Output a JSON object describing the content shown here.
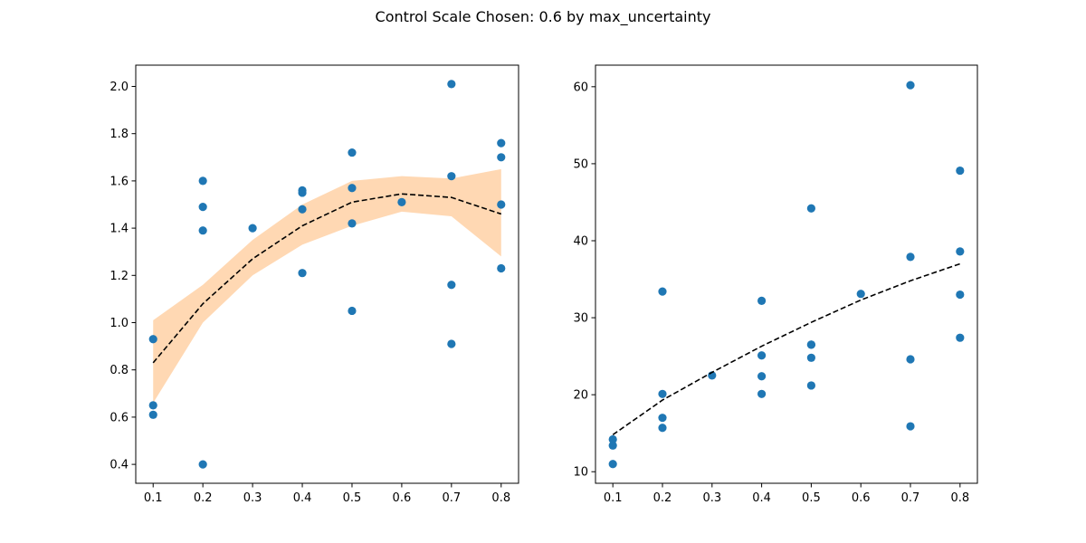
{
  "figure": {
    "suptitle": "Control Scale Chosen: 0.6 by max_uncertainty"
  },
  "colors": {
    "points": "#1f77b4",
    "band": "#ffd8b3",
    "fit_line": "#000000",
    "axes": "#000000"
  },
  "chart_data": [
    {
      "type": "scatter",
      "title": "",
      "xlabel": "",
      "ylabel": "",
      "xlim": [
        0.065,
        0.835
      ],
      "ylim": [
        0.32,
        2.09
      ],
      "x_ticks": [
        0.1,
        0.2,
        0.3,
        0.4,
        0.5,
        0.6,
        0.7,
        0.8
      ],
      "x_tick_labels": [
        "0.1",
        "0.2",
        "0.3",
        "0.4",
        "0.5",
        "0.6",
        "0.7",
        "0.8"
      ],
      "y_ticks": [
        0.4,
        0.6,
        0.8,
        1.0,
        1.2,
        1.4,
        1.6,
        1.8,
        2.0
      ],
      "y_tick_labels": [
        "0.4",
        "0.6",
        "0.8",
        "1.0",
        "1.2",
        "1.4",
        "1.6",
        "1.8",
        "2.0"
      ],
      "grid": false,
      "points": {
        "x": [
          0.1,
          0.1,
          0.1,
          0.2,
          0.2,
          0.2,
          0.2,
          0.3,
          0.4,
          0.4,
          0.4,
          0.4,
          0.5,
          0.5,
          0.5,
          0.5,
          0.6,
          0.7,
          0.7,
          0.7,
          0.7,
          0.8,
          0.8,
          0.8,
          0.8
        ],
        "y": [
          0.93,
          0.65,
          0.61,
          1.6,
          1.49,
          1.39,
          0.4,
          1.4,
          1.56,
          1.55,
          1.48,
          1.21,
          1.72,
          1.57,
          1.42,
          1.05,
          1.51,
          2.01,
          1.62,
          1.16,
          0.91,
          1.76,
          1.7,
          1.5,
          1.23
        ]
      },
      "fit_line": {
        "style": "dashed",
        "x": [
          0.1,
          0.2,
          0.3,
          0.4,
          0.5,
          0.6,
          0.7,
          0.8
        ],
        "y": [
          0.83,
          1.08,
          1.27,
          1.41,
          1.51,
          1.545,
          1.53,
          1.46
        ]
      },
      "band": {
        "x": [
          0.1,
          0.2,
          0.3,
          0.4,
          0.5,
          0.6,
          0.7,
          0.8
        ],
        "lower": [
          0.66,
          1.0,
          1.2,
          1.33,
          1.41,
          1.47,
          1.45,
          1.28
        ],
        "upper": [
          1.01,
          1.16,
          1.35,
          1.5,
          1.6,
          1.62,
          1.61,
          1.65
        ]
      }
    },
    {
      "type": "scatter",
      "title": "",
      "xlabel": "",
      "ylabel": "",
      "xlim": [
        0.065,
        0.835
      ],
      "ylim": [
        8.5,
        62.8
      ],
      "x_ticks": [
        0.1,
        0.2,
        0.3,
        0.4,
        0.5,
        0.6,
        0.7,
        0.8
      ],
      "x_tick_labels": [
        "0.1",
        "0.2",
        "0.3",
        "0.4",
        "0.5",
        "0.6",
        "0.7",
        "0.8"
      ],
      "y_ticks": [
        10,
        20,
        30,
        40,
        50,
        60
      ],
      "y_tick_labels": [
        "10",
        "20",
        "30",
        "40",
        "50",
        "60"
      ],
      "grid": false,
      "points": {
        "x": [
          0.1,
          0.1,
          0.1,
          0.2,
          0.2,
          0.2,
          0.2,
          0.3,
          0.4,
          0.4,
          0.4,
          0.4,
          0.5,
          0.5,
          0.5,
          0.5,
          0.5,
          0.6,
          0.7,
          0.7,
          0.7,
          0.7,
          0.8,
          0.8,
          0.8,
          0.8
        ],
        "y": [
          14.2,
          13.4,
          11.0,
          33.4,
          20.1,
          17.0,
          15.7,
          22.5,
          32.2,
          25.1,
          22.4,
          20.1,
          44.2,
          26.5,
          24.8,
          21.2,
          26.5,
          33.1,
          60.2,
          37.9,
          24.6,
          15.9,
          49.1,
          38.6,
          33.0,
          27.4
        ]
      },
      "fit_line": {
        "style": "dashed",
        "x": [
          0.1,
          0.2,
          0.3,
          0.4,
          0.5,
          0.6,
          0.7,
          0.8
        ],
        "y": [
          14.8,
          19.3,
          22.9,
          26.3,
          29.4,
          32.3,
          34.8,
          37.0
        ]
      }
    }
  ]
}
